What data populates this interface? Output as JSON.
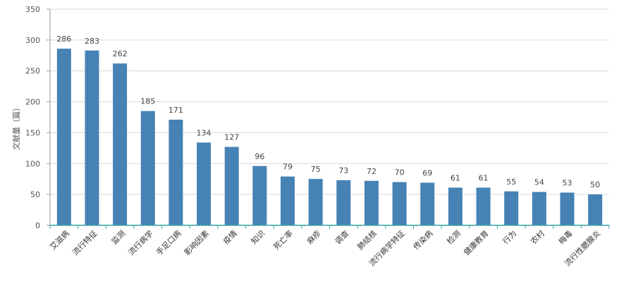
{
  "chart_data": {
    "type": "bar",
    "title": "",
    "xlabel": "",
    "ylabel": "文献量（篇）",
    "ylim": [
      0,
      350
    ],
    "yticks": [
      0,
      50,
      100,
      150,
      200,
      250,
      300,
      350
    ],
    "grid": true,
    "legend": "none",
    "categories": [
      "艾滋病",
      "流行特征",
      "监测",
      "流行病学",
      "手足口病",
      "影响因素",
      "疫情",
      "知识",
      "死亡率",
      "麻疹",
      "调查",
      "肺结核",
      "流行病学特征",
      "传染病",
      "检测",
      "健康教育",
      "行为",
      "农村",
      "梅毒",
      "流行性腮腺炎"
    ],
    "values": [
      286,
      283,
      262,
      185,
      171,
      134,
      127,
      96,
      79,
      75,
      73,
      72,
      70,
      69,
      61,
      61,
      55,
      54,
      53,
      50
    ],
    "colors": {
      "bar": "#4682b4",
      "axis": "#3aa0a8",
      "grid": "#d9d9d9"
    }
  }
}
